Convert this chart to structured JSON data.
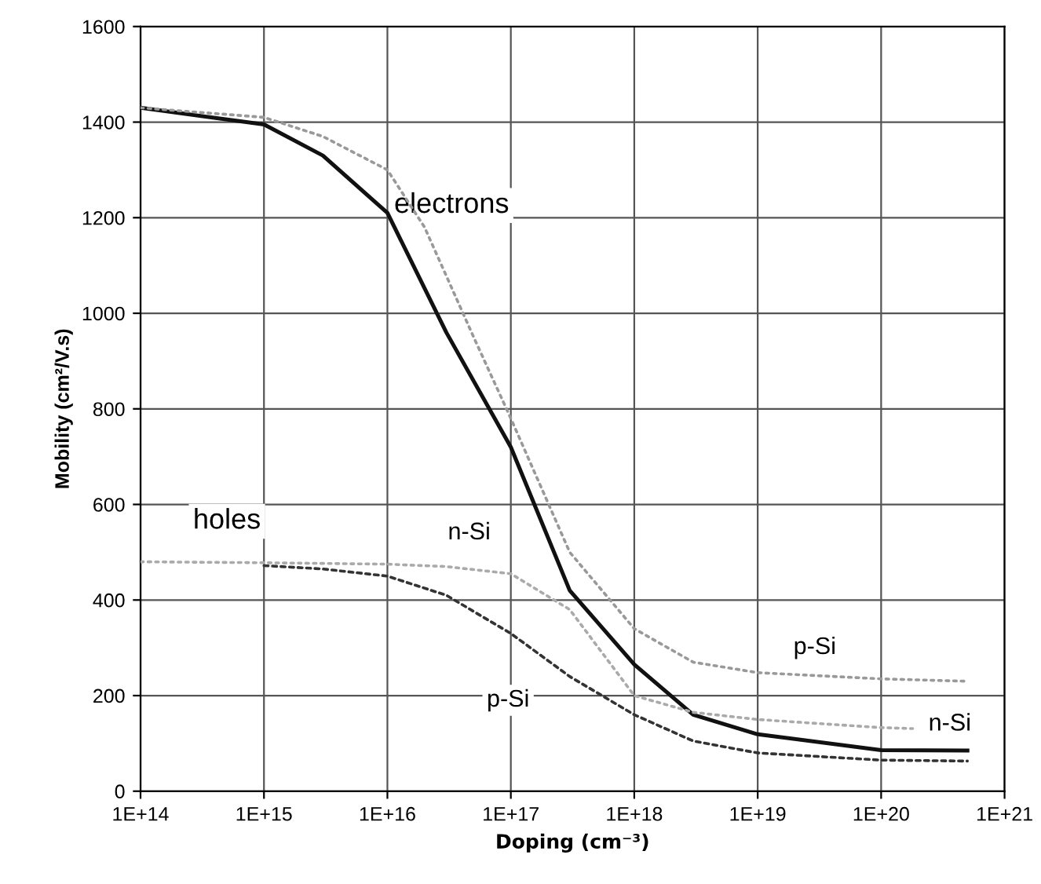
{
  "chart_data": {
    "type": "line",
    "xlabel": "Doping (cm⁻³)",
    "ylabel": "Mobility (cm²/V.s)",
    "log": "x",
    "grid": true,
    "legend": false,
    "xlim": [
      100000000000000.0,
      1e+21
    ],
    "xticks": [
      {
        "value": 100000000000000.0,
        "label": "1E+14"
      },
      {
        "value": 1000000000000000.0,
        "label": "1E+15"
      },
      {
        "value": 1e+16,
        "label": "1E+16"
      },
      {
        "value": 1e+17,
        "label": "1E+17"
      },
      {
        "value": 1e+18,
        "label": "1E+18"
      },
      {
        "value": 1e+19,
        "label": "1E+19"
      },
      {
        "value": 1e+20,
        "label": "1E+20"
      },
      {
        "value": 1e+21,
        "label": "1E+21"
      }
    ],
    "ylim": [
      0,
      1600
    ],
    "yticks": [
      0,
      200,
      400,
      600,
      800,
      1000,
      1200,
      1400,
      1600
    ],
    "series": [
      {
        "color": "#111111",
        "line_style": "solid",
        "x": [
          100000000000000.0,
          1000000000000000.0,
          3000000000000000.0,
          1e+16,
          3e+16,
          1e+17,
          3e+17,
          1e+18,
          3e+18,
          1e+19,
          1e+20,
          5e+20
        ],
        "values": [
          1430,
          1395,
          1330,
          1210,
          960,
          720,
          420,
          265,
          160,
          119,
          86,
          85
        ]
      },
      {
        "color": "#999999",
        "line_style": "dotted",
        "x": [
          100000000000000.0,
          1000000000000000.0,
          3000000000000000.0,
          1e+16,
          2e+16,
          5e+16,
          1e+17,
          3e+17,
          1e+18,
          3e+18,
          1e+19,
          1e+20,
          5e+20
        ],
        "values": [
          1430,
          1410,
          1370,
          1300,
          1180,
          950,
          780,
          500,
          340,
          270,
          248,
          235,
          230
        ]
      },
      {
        "color": "#aaaaaa",
        "line_style": "dotted",
        "x": [
          100000000000000.0,
          1000000000000000.0,
          1e+16,
          3e+16,
          1e+17,
          3e+17,
          1e+18,
          3e+18,
          1e+19,
          1e+20,
          1.8e+20
        ],
        "values": [
          480,
          478,
          475,
          470,
          455,
          380,
          200,
          165,
          150,
          133,
          131
        ]
      },
      {
        "color": "#333333",
        "line_style": "dashed",
        "x": [
          1000000000000000.0,
          3000000000000000.0,
          1e+16,
          3e+16,
          1e+17,
          3e+17,
          1e+18,
          3e+18,
          1e+19,
          1e+20,
          5e+20
        ],
        "values": [
          472,
          465,
          450,
          410,
          330,
          240,
          160,
          105,
          80,
          65,
          63
        ]
      }
    ],
    "annotations": [
      "electrons",
      "holes",
      {
        "text": "n-Si",
        "x": 4.6e+16,
        "y": 540
      },
      {
        "text": "p-Si",
        "x": 9.5e+16,
        "y": 190
      },
      {
        "text": "p-Si",
        "x": 2.9e+19,
        "y": 300
      },
      {
        "text": "n-Si",
        "x": 3.6e+20,
        "y": 140
      }
    ]
  }
}
